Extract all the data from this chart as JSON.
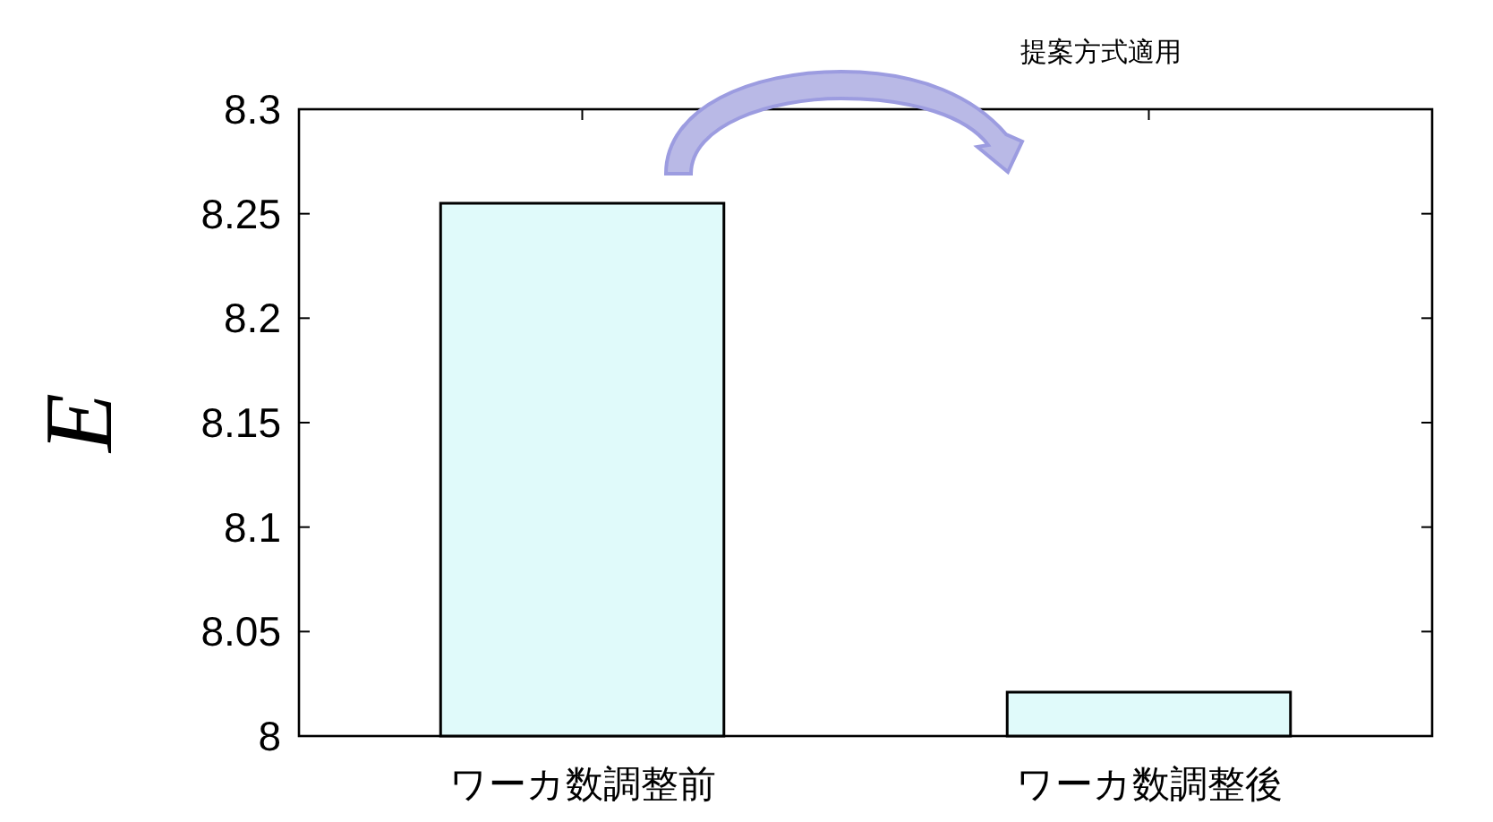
{
  "chart_data": {
    "type": "bar",
    "categories": [
      "ワーカ数調整前",
      "ワーカ数調整後"
    ],
    "values": [
      8.255,
      8.021
    ],
    "color": "#e0fafa",
    "ylabel": "E",
    "ylim": [
      8,
      8.3
    ],
    "yticks": [
      8,
      8.05,
      8.1,
      8.15,
      8.2,
      8.25,
      8.3
    ],
    "annotations": [
      "提案方式適用"
    ]
  }
}
